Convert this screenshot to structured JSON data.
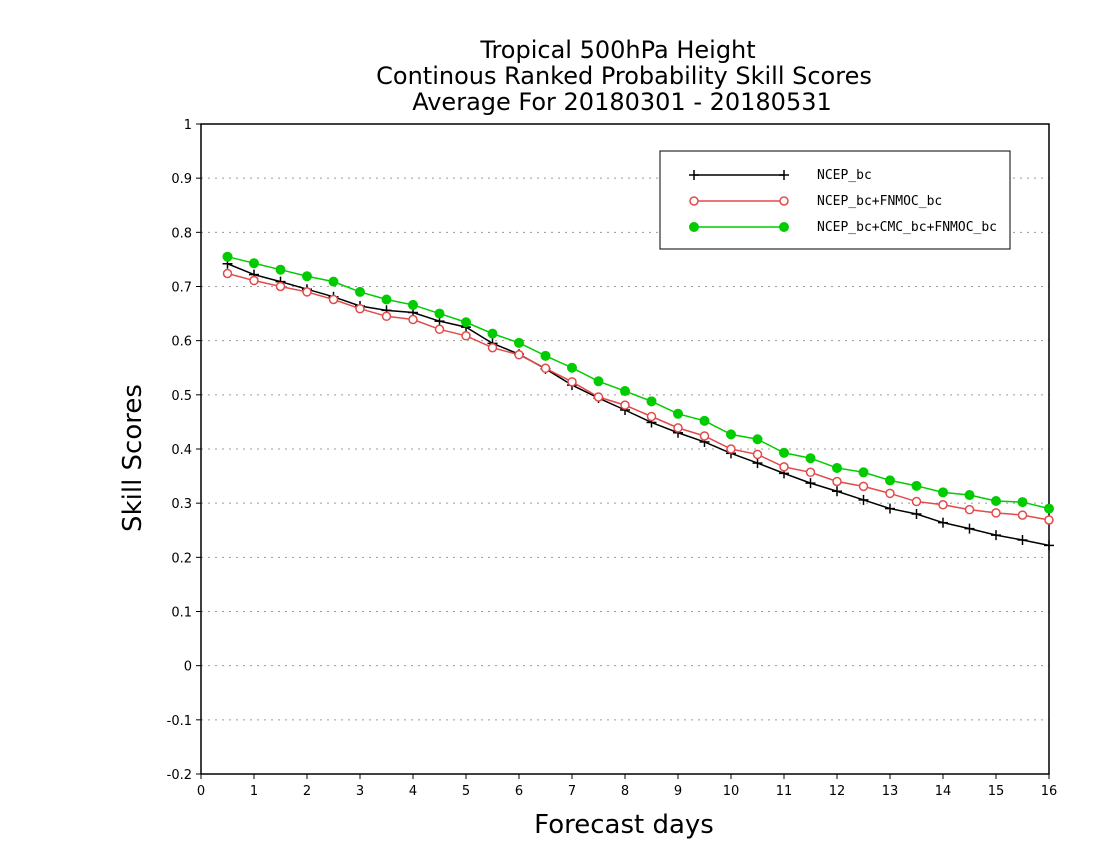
{
  "chart_data": {
    "type": "line",
    "title_lines": [
      "Tropical 500hPa Height",
      "Continous Ranked Probability Skill Scores",
      "Average For 20180301 - 20180531"
    ],
    "xlabel": "Forecast days",
    "ylabel": "Skill Scores",
    "xlim": [
      0,
      16
    ],
    "ylim": [
      -0.2,
      1
    ],
    "x_ticks": [
      "0",
      "1",
      "2",
      "3",
      "4",
      "5",
      "6",
      "7",
      "8",
      "9",
      "10",
      "11",
      "12",
      "13",
      "14",
      "15",
      "16"
    ],
    "y_ticks": [
      "-0.2",
      "-0.1",
      "0",
      "0.1",
      "0.2",
      "0.3",
      "0.4",
      "0.5",
      "0.6",
      "0.7",
      "0.8",
      "0.9",
      "1"
    ],
    "grid": "horizontal dotted",
    "legend_position": "top-right",
    "x": [
      0.5,
      1,
      1.5,
      2,
      2.5,
      3,
      3.5,
      4,
      4.5,
      5,
      5.5,
      6,
      6.5,
      7,
      7.5,
      8,
      8.5,
      9,
      9.5,
      10,
      10.5,
      11,
      11.5,
      12,
      12.5,
      13,
      13.5,
      14,
      14.5,
      15,
      15.5,
      16
    ],
    "series": [
      {
        "name": "NCEP_bc",
        "color": "#000000",
        "marker": "plus",
        "values": [
          0.742,
          0.722,
          0.709,
          0.695,
          0.681,
          0.664,
          0.656,
          0.652,
          0.636,
          0.625,
          0.595,
          0.575,
          0.548,
          0.518,
          0.494,
          0.472,
          0.449,
          0.43,
          0.413,
          0.392,
          0.374,
          0.355,
          0.337,
          0.322,
          0.306,
          0.29,
          0.28,
          0.264,
          0.253,
          0.241,
          0.232,
          0.222
        ]
      },
      {
        "name": "NCEP_bc+FNMOC_bc",
        "color": "#e34a4a",
        "marker": "open-circle",
        "values": [
          0.724,
          0.711,
          0.7,
          0.69,
          0.676,
          0.659,
          0.645,
          0.639,
          0.621,
          0.609,
          0.587,
          0.574,
          0.549,
          0.524,
          0.496,
          0.481,
          0.46,
          0.439,
          0.424,
          0.4,
          0.39,
          0.367,
          0.357,
          0.34,
          0.331,
          0.318,
          0.303,
          0.297,
          0.288,
          0.282,
          0.278,
          0.269
        ]
      },
      {
        "name": "NCEP_bc+CMC_bc+FNMOC_bc",
        "color": "#00cc00",
        "marker": "filled-circle",
        "values": [
          0.755,
          0.743,
          0.731,
          0.719,
          0.709,
          0.69,
          0.676,
          0.666,
          0.65,
          0.634,
          0.613,
          0.596,
          0.572,
          0.55,
          0.525,
          0.507,
          0.488,
          0.465,
          0.452,
          0.427,
          0.418,
          0.393,
          0.383,
          0.365,
          0.357,
          0.342,
          0.332,
          0.32,
          0.315,
          0.304,
          0.302,
          0.29
        ]
      }
    ]
  }
}
